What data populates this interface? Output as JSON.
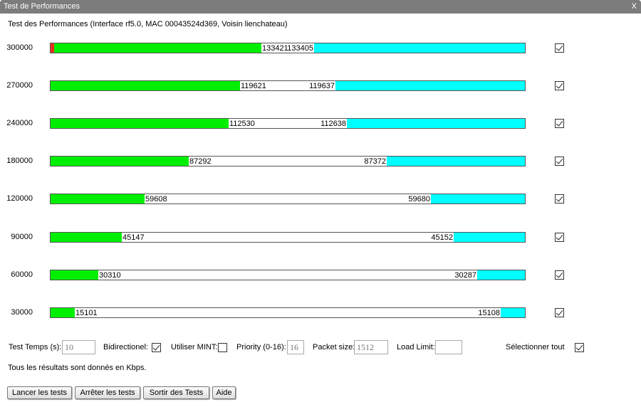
{
  "window": {
    "title": "Test de Performances",
    "close_label": "X"
  },
  "subtitle": "Test des Performances (Interface rf5.0, MAC 00043524d369, Voisin lienchateau)",
  "scale_max": 300000,
  "colors": {
    "tx": "#00ef00",
    "rx": "#00ffff",
    "error": "#e8321e"
  },
  "rows": [
    {
      "rate": "300000",
      "tx": "133421",
      "rx": "133405",
      "selected": true,
      "error_fraction": 0.008
    },
    {
      "rate": "270000",
      "tx": "119621",
      "rx": "119637",
      "selected": true
    },
    {
      "rate": "240000",
      "tx": "112530",
      "rx": "112638",
      "selected": true
    },
    {
      "rate": "180000",
      "tx": "87292",
      "rx": "87372",
      "selected": true
    },
    {
      "rate": "120000",
      "tx": "59608",
      "rx": "59680",
      "selected": true
    },
    {
      "rate": "90000",
      "tx": "45147",
      "rx": "45152",
      "selected": true
    },
    {
      "rate": "60000",
      "tx": "30310",
      "rx": "30287",
      "selected": true
    },
    {
      "rate": "30000",
      "tx": "15101",
      "rx": "15108",
      "selected": true
    }
  ],
  "controls": {
    "test_time_label": "Test Temps (s):",
    "test_time_value": "10",
    "bidirectional_label": "Bidirectionel:",
    "bidirectional_checked": true,
    "mint_label": "Utiliser MINT:",
    "mint_checked": false,
    "priority_label": "Priority (0-16):",
    "priority_value": "16",
    "packet_size_label": "Packet size:",
    "packet_size_value": "1512",
    "load_limit_label": "Load Limit:",
    "load_limit_value": "",
    "select_all_label": "Sélectionner tout",
    "select_all_checked": true
  },
  "note": "Tous les résultats sont donnés en Kbps.",
  "buttons": {
    "start": "Lancer les tests",
    "stop": "Arrêter les tests",
    "exit": "Sortir des Tests",
    "help": "Aide"
  }
}
